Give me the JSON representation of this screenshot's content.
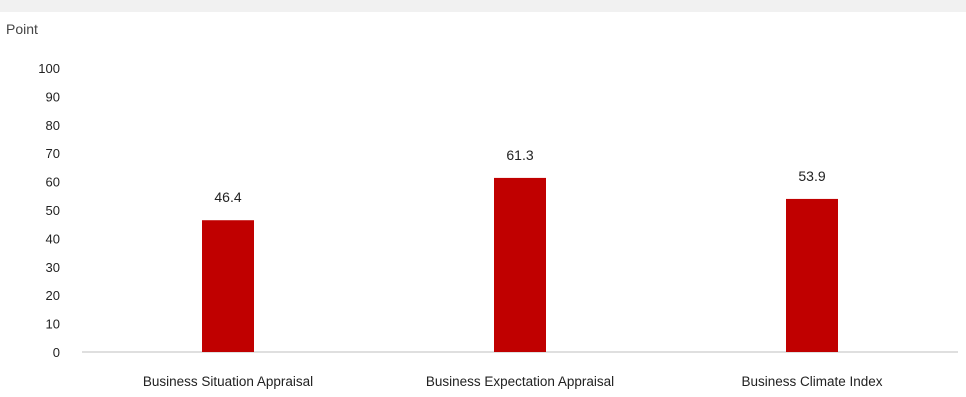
{
  "chart_data": {
    "type": "bar",
    "title": "",
    "xlabel": "",
    "ylabel": "Point",
    "ylim": [
      0,
      100
    ],
    "yticks": [
      0,
      10,
      20,
      30,
      40,
      50,
      60,
      70,
      80,
      90,
      100
    ],
    "categories": [
      "Business Situation Appraisal",
      "Business Expectation Appraisal",
      "Business Climate Index"
    ],
    "values": [
      46.4,
      61.3,
      53.9
    ],
    "data_labels": [
      "46.4",
      "61.3",
      "53.9"
    ],
    "bar_color": "#c00000",
    "axis_color": "#bfbfbf",
    "grid": false,
    "legend": "none"
  }
}
